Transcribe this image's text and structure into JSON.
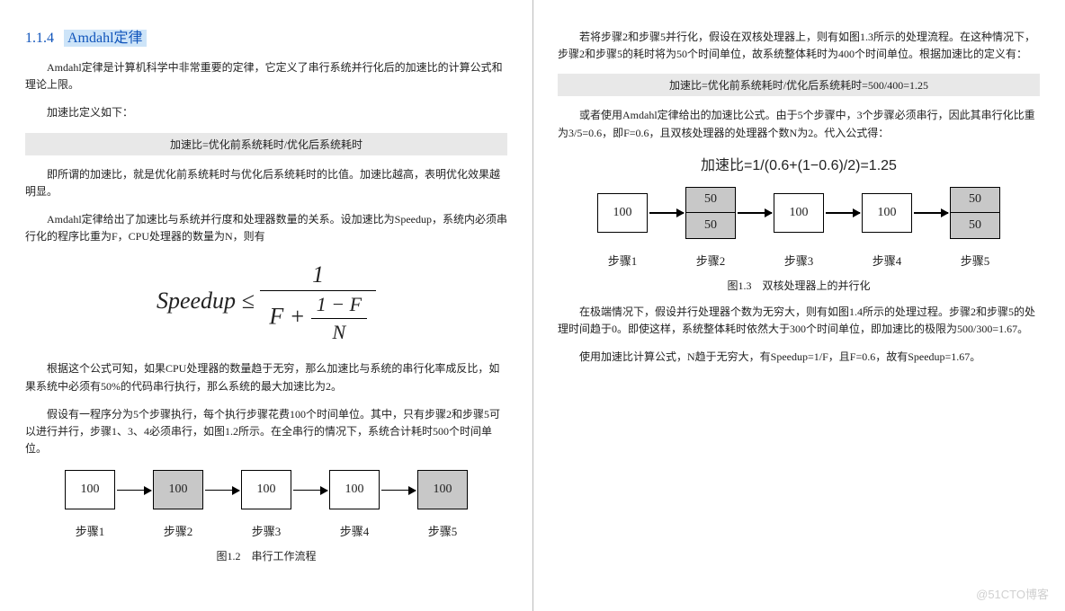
{
  "left": {
    "sectionNumber": "1.1.4",
    "sectionTitle": "Amdahl定律",
    "p1": "Amdahl定律是计算机科学中非常重要的定律，它定义了串行系统并行化后的加速比的计算公式和理论上限。",
    "p2": "加速比定义如下：",
    "formulaBar": "加速比=优化前系统耗时/优化后系统耗时",
    "p3": "即所谓的加速比，就是优化前系统耗时与优化后系统耗时的比值。加速比越高，表明优化效果越明显。",
    "p4": "Amdahl定律给出了加速比与系统并行度和处理器数量的关系。设加速比为Speedup，系统内必须串行化的程序比重为F，CPU处理器的数量为N，则有",
    "bigFormula": {
      "lhs": "Speedup ≤",
      "topNum": "1",
      "denLeft": "F + ",
      "innerNum": "1 − F",
      "innerDen": "N"
    },
    "p5": "根据这个公式可知，如果CPU处理器的数量趋于无穷，那么加速比与系统的串行化率成反比，如果系统中必须有50%的代码串行执行，那么系统的最大加速比为2。",
    "p6": "假设有一程序分为5个步骤执行，每个执行步骤花费100个时间单位。其中，只有步骤2和步骤5可以进行并行，步骤1、3、4必须串行，如图1.2所示。在全串行的情况下，系统合计耗时500个时间单位。",
    "flow": {
      "values": [
        "100",
        "100",
        "100",
        "100",
        "100"
      ],
      "shaded": [
        false,
        true,
        false,
        false,
        true
      ],
      "labels": [
        "步骤1",
        "步骤2",
        "步骤3",
        "步骤4",
        "步骤5"
      ]
    },
    "caption": "图1.2　串行工作流程"
  },
  "right": {
    "p1": "若将步骤2和步骤5并行化，假设在双核处理器上，则有如图1.3所示的处理流程。在这种情况下，步骤2和步骤5的耗时将为50个时间单位，故系统整体耗时为400个时间单位。根据加速比的定义有：",
    "formulaBar": "加速比=优化前系统耗时/优化后系统耗时=500/400=1.25",
    "p2": "或者使用Amdahl定律给出的加速比公式。由于5个步骤中，3个步骤必须串行，因此其串行化比重为3/5=0.6，即F=0.6，且双核处理器的处理器个数N为2。代入公式得：",
    "midFormula": "加速比=1/(0.6+(1−0.6)/2)=1.25",
    "flow": {
      "type": "split",
      "values": [
        "100",
        [
          "50",
          "50"
        ],
        "100",
        "100",
        [
          "50",
          "50"
        ]
      ],
      "labels": [
        "步骤1",
        "步骤2",
        "步骤3",
        "步骤4",
        "步骤5"
      ]
    },
    "caption": "图1.3　双核处理器上的并行化",
    "p3": "在极端情况下，假设并行处理器个数为无穷大，则有如图1.4所示的处理过程。步骤2和步骤5的处理时间趋于0。即使这样，系统整体耗时依然大于300个时间单位，即加速比的极限为500/300=1.67。",
    "p4": "使用加速比计算公式，N趋于无穷大，有Speedup=1/F，且F=0.6，故有Speedup=1.67。"
  },
  "watermark": "@51CTO博客"
}
